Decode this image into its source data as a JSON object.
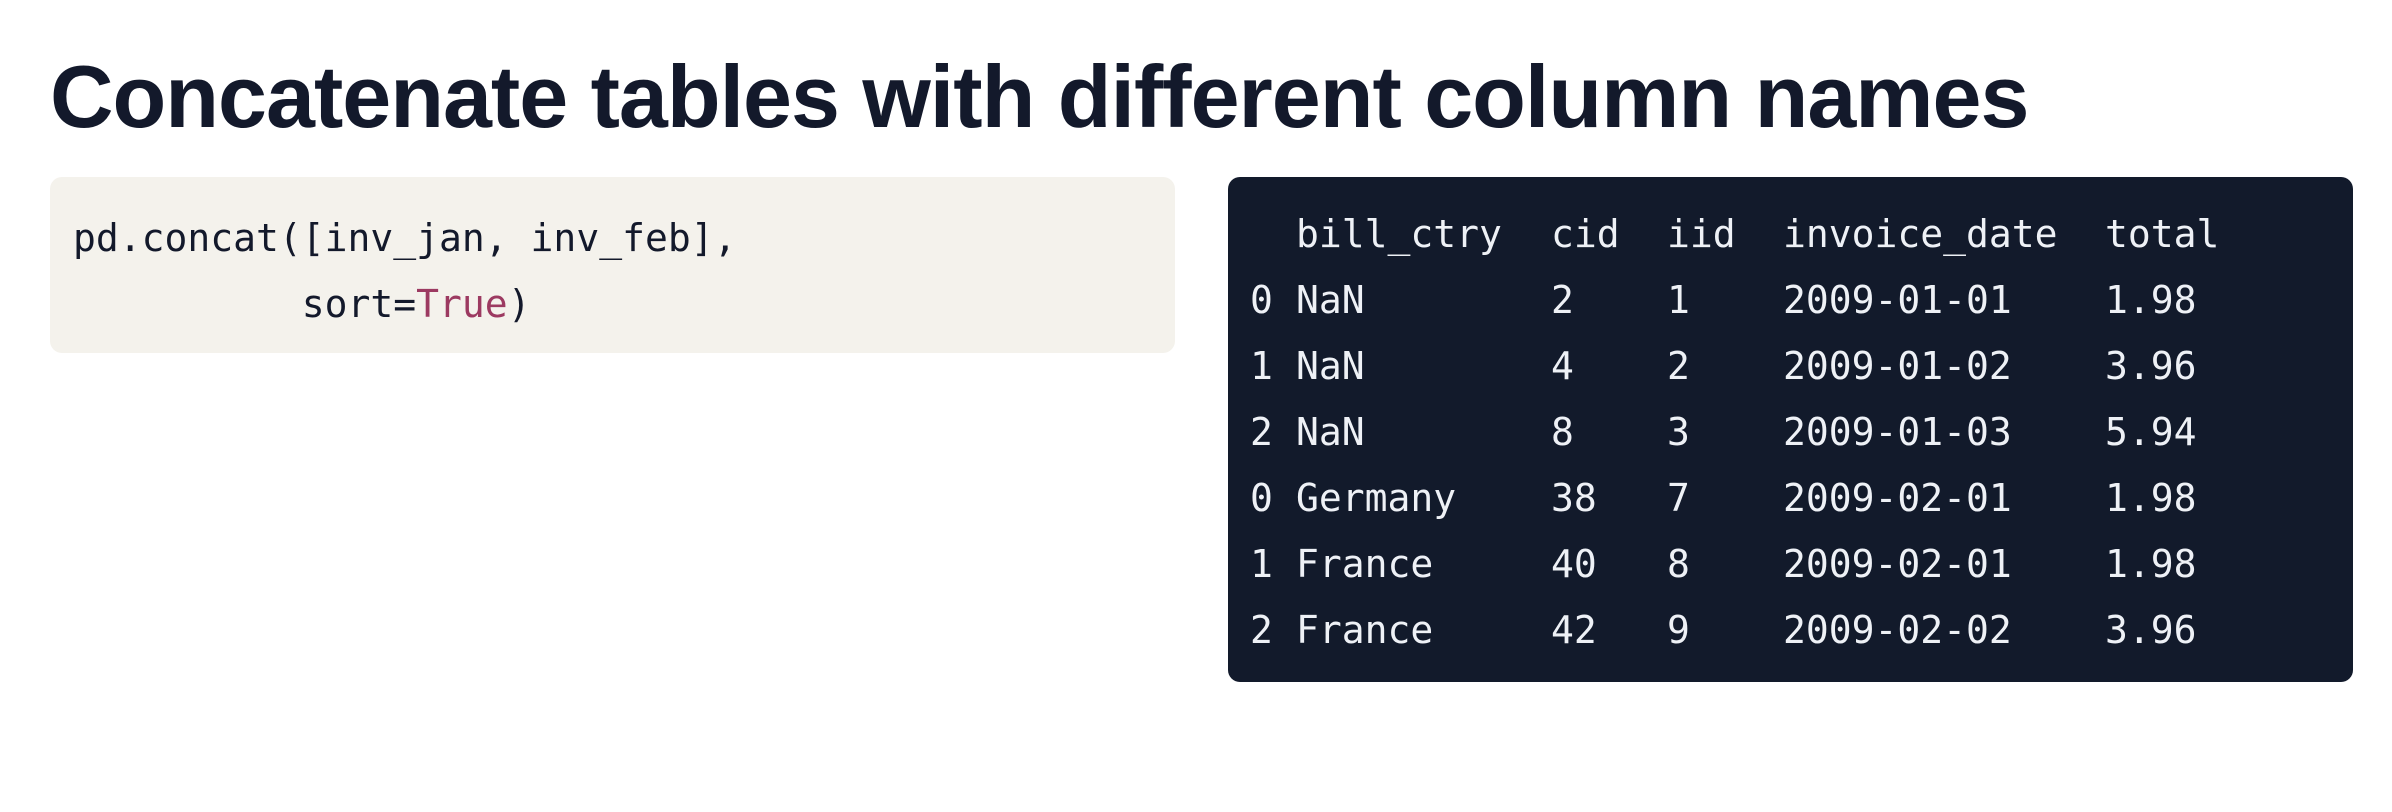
{
  "slide": {
    "title": "Concatenate tables with different column names"
  },
  "code": {
    "line1": "pd.concat([inv_jan, inv_feb],",
    "line2_prefix": "          sort=",
    "line2_keyword": "True",
    "line2_suffix": ")"
  },
  "output": {
    "columns": [
      "",
      "bill_ctry",
      "cid",
      "iid",
      "invoice_date",
      "total"
    ],
    "rows": [
      [
        "0",
        "NaN",
        "2",
        "1",
        "2009-01-01",
        "1.98"
      ],
      [
        "1",
        "NaN",
        "4",
        "2",
        "2009-01-02",
        "3.96"
      ],
      [
        "2",
        "NaN",
        "8",
        "3",
        "2009-01-03",
        "5.94"
      ],
      [
        "0",
        "Germany",
        "38",
        "7",
        "2009-02-01",
        "1.98"
      ],
      [
        "1",
        "France",
        "40",
        "8",
        "2009-02-01",
        "1.98"
      ],
      [
        "2",
        "France",
        "42",
        "9",
        "2009-02-02",
        "3.96"
      ]
    ]
  },
  "colors": {
    "title": "#13192b",
    "code_background": "#f4f2ec",
    "output_background": "#121a2b",
    "keyword": "#9c3a61",
    "output_text": "#eef1f6"
  }
}
